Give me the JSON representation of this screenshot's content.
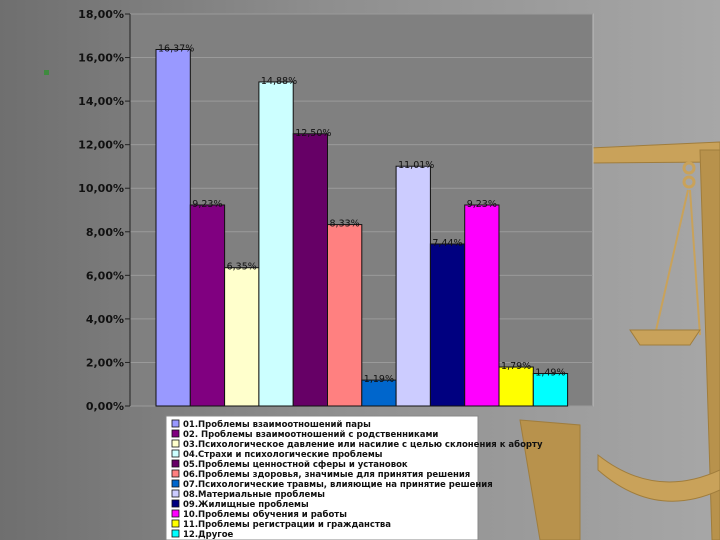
{
  "colors": {
    "background": "#8a8a8a",
    "scale": "#c9a25a",
    "plot_border": "#bdbdbd"
  },
  "icons": {
    "scale": "scale-of-justice-icon"
  },
  "chart_data": {
    "type": "bar",
    "title": "",
    "xlabel": "",
    "ylabel": "",
    "ylim": [
      0,
      18
    ],
    "yticks": [
      0,
      2,
      4,
      6,
      8,
      10,
      12,
      14,
      16,
      18
    ],
    "ytick_labels": [
      "0,00%",
      "2,00%",
      "4,00%",
      "6,00%",
      "8,00%",
      "10,00%",
      "12,00%",
      "14,00%",
      "16,00%",
      "18,00%"
    ],
    "grid": true,
    "legend_position": "bottom",
    "series": [
      {
        "name": "01.Проблемы взаимоотношений пары",
        "value": 16.37,
        "label": "16,37%",
        "color": "#9999ff"
      },
      {
        "name": "02. Проблемы взаимоотношений с родственниками",
        "value": 9.23,
        "label": "9,23%",
        "color": "#800080"
      },
      {
        "name": "03.Психологическое давление или насилие с целью склонения к аборту",
        "value": 6.35,
        "label": "6,35%",
        "color": "#ffffcc"
      },
      {
        "name": "04.Страхи и психологические проблемы",
        "value": 14.88,
        "label": "14,88%",
        "color": "#ccffff"
      },
      {
        "name": "05.Проблемы ценностной сферы и установок",
        "value": 12.5,
        "label": "12,50%",
        "color": "#660066"
      },
      {
        "name": "06.Проблемы здоровья, значимые для принятия решения",
        "value": 8.33,
        "label": "8,33%",
        "color": "#ff8080"
      },
      {
        "name": "07.Психологические травмы, влияющие на принятие решения",
        "value": 1.19,
        "label": "1,19%",
        "color": "#0066cc"
      },
      {
        "name": "08.Материальные проблемы",
        "value": 11.01,
        "label": "11,01%",
        "color": "#ccccff"
      },
      {
        "name": "09.Жилищные проблемы",
        "value": 7.44,
        "label": "7,44%",
        "color": "#000080"
      },
      {
        "name": "10.Проблемы обучения и работы",
        "value": 9.23,
        "label": "9,23%",
        "color": "#ff00ff"
      },
      {
        "name": "11.Проблемы регистрации и гражданства",
        "value": 1.79,
        "label": "1,79%",
        "color": "#ffff00"
      },
      {
        "name": "12.Другое",
        "value": 1.49,
        "label": "1,49%",
        "color": "#00ffff"
      }
    ]
  }
}
